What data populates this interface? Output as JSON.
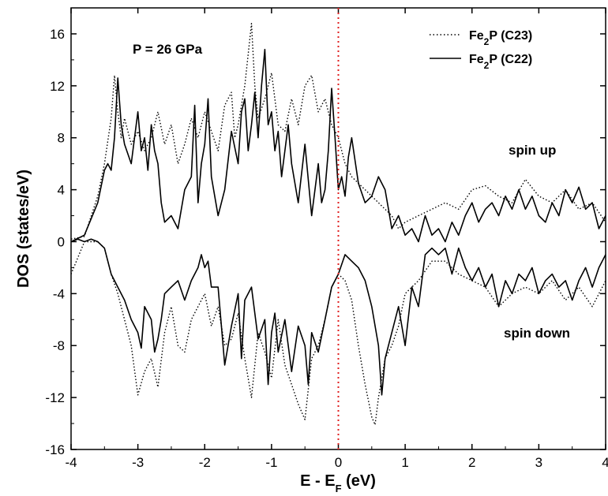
{
  "chart_data": {
    "type": "line",
    "xlabel": "E - E",
    "xlabel_sub": "F",
    "xlabel_unit": " (eV)",
    "ylabel": "DOS (states/eV)",
    "xlim": [
      -4,
      4
    ],
    "ylim": [
      -16,
      18
    ],
    "xticks": [
      "-4",
      "-3",
      "-2",
      "-1",
      "0",
      "1",
      "2",
      "3",
      "4"
    ],
    "yticks": [
      "16",
      "12",
      "8",
      "4",
      "0",
      "-4",
      "-8",
      "-12",
      "-16"
    ],
    "grid": false,
    "legend_position": "top-right",
    "fermi_level_x": 0,
    "fermi_line_color": "#e02020",
    "annotations": {
      "pressure": "P = 26 GPa",
      "spin_up": "spin up",
      "spin_down": "spin down"
    },
    "series": [
      {
        "name_main": "Fe",
        "name_sub": "2",
        "name_rest": "P (C23)",
        "style": "dotted",
        "color": "#000000",
        "spin_up": {
          "x": [
            -4.0,
            -3.8,
            -3.6,
            -3.5,
            -3.4,
            -3.35,
            -3.3,
            -3.25,
            -3.2,
            -3.1,
            -3.0,
            -2.9,
            -2.8,
            -2.7,
            -2.6,
            -2.5,
            -2.4,
            -2.3,
            -2.2,
            -2.1,
            -2.0,
            -1.9,
            -1.8,
            -1.7,
            -1.6,
            -1.55,
            -1.5,
            -1.4,
            -1.3,
            -1.25,
            -1.2,
            -1.1,
            -1.0,
            -0.9,
            -0.8,
            -0.7,
            -0.6,
            -0.5,
            -0.4,
            -0.3,
            -0.2,
            -0.1,
            0.0,
            0.1,
            0.2,
            0.3,
            0.4,
            0.5,
            0.6,
            0.7,
            0.8,
            0.9,
            1.0,
            1.2,
            1.4,
            1.6,
            1.8,
            2.0,
            2.2,
            2.4,
            2.6,
            2.8,
            3.0,
            3.2,
            3.4,
            3.6,
            3.8,
            4.0
          ],
          "y": [
            0.2,
            0.4,
            3.5,
            6.0,
            9.5,
            12.8,
            10.0,
            8.0,
            9.5,
            7.5,
            8.5,
            7.0,
            8.0,
            10.0,
            7.5,
            9.0,
            6.0,
            7.5,
            9.5,
            8.0,
            10.0,
            8.5,
            7.0,
            10.5,
            11.5,
            8.0,
            9.0,
            12.0,
            16.8,
            12.0,
            9.5,
            11.0,
            13.0,
            9.0,
            8.5,
            11.0,
            9.0,
            12.0,
            12.8,
            10.0,
            11.0,
            9.0,
            8.0,
            6.0,
            5.0,
            4.5,
            4.0,
            3.5,
            3.0,
            2.5,
            2.0,
            1.0,
            1.5,
            2.0,
            2.5,
            3.0,
            2.5,
            4.0,
            4.3,
            3.5,
            3.0,
            4.8,
            3.5,
            3.0,
            4.0,
            2.5,
            3.0,
            1.5
          ]
        },
        "spin_down": {
          "x": [
            -4.0,
            -3.8,
            -3.6,
            -3.5,
            -3.4,
            -3.3,
            -3.2,
            -3.1,
            -3.0,
            -2.9,
            -2.8,
            -2.7,
            -2.6,
            -2.5,
            -2.4,
            -2.3,
            -2.2,
            -2.1,
            -2.0,
            -1.9,
            -1.8,
            -1.7,
            -1.6,
            -1.5,
            -1.4,
            -1.3,
            -1.2,
            -1.1,
            -1.0,
            -0.9,
            -0.8,
            -0.7,
            -0.6,
            -0.5,
            -0.4,
            -0.3,
            -0.2,
            -0.1,
            0.0,
            0.1,
            0.2,
            0.3,
            0.4,
            0.5,
            0.55,
            0.6,
            0.7,
            0.8,
            0.9,
            1.0,
            1.2,
            1.4,
            1.6,
            1.8,
            2.0,
            2.2,
            2.4,
            2.6,
            2.8,
            3.0,
            3.2,
            3.4,
            3.6,
            3.8,
            4.0
          ],
          "y": [
            -2.5,
            0.0,
            0.0,
            -0.5,
            -2.5,
            -4.0,
            -6.0,
            -8.0,
            -11.8,
            -10.0,
            -9.0,
            -11.2,
            -7.0,
            -5.0,
            -8.0,
            -8.5,
            -6.0,
            -5.0,
            -4.0,
            -6.5,
            -5.0,
            -8.0,
            -7.5,
            -5.5,
            -9.0,
            -12.0,
            -7.0,
            -8.5,
            -10.5,
            -6.0,
            -9.5,
            -11.0,
            -12.5,
            -13.7,
            -9.0,
            -8.0,
            -6.0,
            -3.5,
            -2.5,
            -3.0,
            -4.5,
            -8.0,
            -11.0,
            -13.5,
            -14.1,
            -12.0,
            -9.0,
            -8.0,
            -6.5,
            -4.0,
            -3.0,
            -1.5,
            -1.5,
            -2.5,
            -3.0,
            -3.5,
            -5.0,
            -4.0,
            -3.5,
            -4.0,
            -3.0,
            -4.5,
            -3.5,
            -5.0,
            -3.0
          ]
        }
      },
      {
        "name_main": "Fe",
        "name_sub": "2",
        "name_rest": "P (C22)",
        "style": "solid",
        "color": "#000000",
        "spin_up": {
          "x": [
            -4.0,
            -3.8,
            -3.6,
            -3.5,
            -3.45,
            -3.4,
            -3.35,
            -3.3,
            -3.25,
            -3.2,
            -3.1,
            -3.05,
            -3.0,
            -2.95,
            -2.9,
            -2.85,
            -2.8,
            -2.75,
            -2.7,
            -2.65,
            -2.6,
            -2.5,
            -2.4,
            -2.3,
            -2.2,
            -2.15,
            -2.1,
            -2.05,
            -2.0,
            -1.95,
            -1.9,
            -1.8,
            -1.7,
            -1.6,
            -1.5,
            -1.45,
            -1.4,
            -1.35,
            -1.3,
            -1.25,
            -1.2,
            -1.15,
            -1.1,
            -1.05,
            -1.0,
            -0.95,
            -0.9,
            -0.85,
            -0.8,
            -0.75,
            -0.7,
            -0.6,
            -0.5,
            -0.4,
            -0.3,
            -0.25,
            -0.2,
            -0.15,
            -0.1,
            -0.05,
            0.0,
            0.05,
            0.1,
            0.15,
            0.2,
            0.3,
            0.4,
            0.5,
            0.6,
            0.7,
            0.75,
            0.8,
            0.9,
            1.0,
            1.1,
            1.2,
            1.3,
            1.4,
            1.5,
            1.6,
            1.7,
            1.8,
            1.9,
            2.0,
            2.1,
            2.2,
            2.3,
            2.4,
            2.5,
            2.6,
            2.7,
            2.8,
            2.9,
            3.0,
            3.1,
            3.2,
            3.3,
            3.4,
            3.5,
            3.6,
            3.7,
            3.8,
            3.9,
            4.0
          ],
          "y": [
            0.0,
            0.5,
            3.0,
            5.5,
            6.0,
            5.5,
            8.0,
            12.6,
            9.0,
            7.5,
            6.0,
            8.0,
            10.0,
            7.0,
            8.0,
            5.5,
            9.0,
            7.0,
            6.0,
            3.0,
            1.5,
            2.0,
            1.0,
            4.0,
            5.0,
            10.5,
            3.0,
            6.0,
            7.5,
            11.0,
            5.0,
            2.0,
            4.0,
            8.5,
            6.0,
            10.0,
            11.0,
            7.0,
            9.0,
            11.5,
            8.0,
            12.0,
            14.8,
            9.0,
            10.0,
            7.0,
            8.5,
            5.0,
            7.0,
            9.0,
            6.0,
            3.0,
            7.5,
            2.0,
            6.0,
            3.0,
            4.0,
            7.0,
            11.8,
            8.0,
            4.0,
            5.0,
            3.5,
            6.5,
            8.0,
            4.5,
            3.0,
            3.5,
            5.0,
            4.0,
            2.5,
            1.0,
            2.0,
            0.5,
            1.0,
            0.0,
            2.0,
            0.5,
            1.0,
            0.0,
            1.5,
            0.5,
            2.0,
            3.0,
            1.5,
            2.5,
            3.0,
            2.0,
            3.5,
            2.5,
            4.0,
            2.5,
            3.5,
            2.0,
            1.5,
            3.0,
            2.0,
            4.0,
            3.0,
            4.2,
            2.5,
            3.0,
            1.0,
            2.0
          ]
        },
        "spin_down": {
          "x": [
            -4.0,
            -3.9,
            -3.8,
            -3.7,
            -3.6,
            -3.5,
            -3.4,
            -3.3,
            -3.2,
            -3.1,
            -3.0,
            -2.95,
            -2.9,
            -2.8,
            -2.75,
            -2.7,
            -2.65,
            -2.6,
            -2.5,
            -2.4,
            -2.3,
            -2.2,
            -2.1,
            -2.05,
            -2.0,
            -1.95,
            -1.9,
            -1.8,
            -1.7,
            -1.6,
            -1.5,
            -1.45,
            -1.4,
            -1.3,
            -1.2,
            -1.1,
            -1.05,
            -1.0,
            -0.95,
            -0.9,
            -0.8,
            -0.7,
            -0.6,
            -0.5,
            -0.45,
            -0.4,
            -0.3,
            -0.2,
            -0.1,
            0.0,
            0.1,
            0.2,
            0.3,
            0.4,
            0.5,
            0.6,
            0.65,
            0.7,
            0.8,
            0.9,
            1.0,
            1.1,
            1.2,
            1.3,
            1.4,
            1.5,
            1.6,
            1.7,
            1.8,
            1.9,
            2.0,
            2.1,
            2.2,
            2.3,
            2.4,
            2.5,
            2.6,
            2.7,
            2.8,
            2.9,
            3.0,
            3.1,
            3.2,
            3.3,
            3.4,
            3.5,
            3.6,
            3.7,
            3.8,
            3.9,
            4.0
          ],
          "y": [
            0.0,
            0.2,
            0.0,
            0.2,
            0.0,
            -0.5,
            -2.5,
            -3.5,
            -4.5,
            -6.0,
            -7.0,
            -8.2,
            -5.0,
            -6.0,
            -8.5,
            -7.5,
            -6.0,
            -4.0,
            -3.5,
            -3.0,
            -4.5,
            -3.0,
            -2.0,
            -1.0,
            -2.0,
            -1.5,
            -3.5,
            -3.5,
            -9.5,
            -6.5,
            -4.0,
            -9.0,
            -4.5,
            -3.5,
            -7.5,
            -6.0,
            -11.0,
            -7.0,
            -5.5,
            -8.5,
            -6.0,
            -10.0,
            -6.5,
            -8.0,
            -11.0,
            -7.0,
            -8.5,
            -6.0,
            -3.5,
            -2.5,
            -1.0,
            -1.5,
            -2.0,
            -3.0,
            -5.0,
            -8.0,
            -11.8,
            -9.0,
            -7.0,
            -5.0,
            -8.0,
            -3.5,
            -5.0,
            -1.0,
            -0.5,
            -1.0,
            -0.5,
            -2.5,
            -0.5,
            -2.0,
            -3.0,
            -2.0,
            -3.5,
            -2.5,
            -5.0,
            -3.0,
            -4.0,
            -2.5,
            -3.0,
            -2.0,
            -4.0,
            -3.0,
            -2.5,
            -3.5,
            -3.0,
            -4.5,
            -3.0,
            -2.0,
            -3.5,
            -2.0,
            -1.0
          ]
        }
      }
    ]
  }
}
